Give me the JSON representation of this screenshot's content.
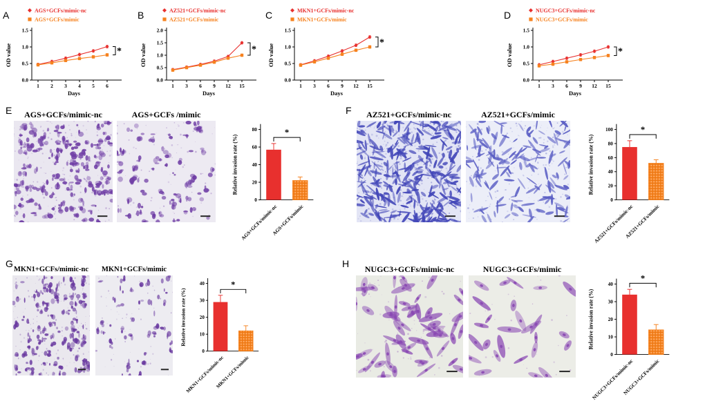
{
  "colors": {
    "nc": "#e8302e",
    "mimic": "#f6821f",
    "axis": "#000000"
  },
  "chart_data": {
    "line_charts": [
      {
        "panel": "A",
        "type": "line",
        "ylabel": "OD value",
        "xlabel": "Days",
        "ylim": [
          0,
          1.5
        ],
        "yticks": [
          "0.0",
          "0.5",
          "1.0",
          "1.5"
        ],
        "x": [
          "1",
          "2",
          "3",
          "4",
          "5",
          "6"
        ],
        "err": 0.04,
        "sig": "*",
        "series": [
          {
            "name": "AGS+GCFs/mimic-nc",
            "marker": "diamond",
            "color": "#e8302e",
            "values": [
              0.47,
              0.56,
              0.66,
              0.77,
              0.88,
              1.01
            ]
          },
          {
            "name": "AGS+GCFs/mimic",
            "marker": "square",
            "color": "#f6821f",
            "values": [
              0.46,
              0.52,
              0.59,
              0.65,
              0.7,
              0.76
            ]
          }
        ]
      },
      {
        "panel": "B",
        "type": "line",
        "ylabel": "OD value",
        "xlabel": "Days",
        "ylim": [
          0,
          2.0
        ],
        "yticks": [
          "0.0",
          "0.5",
          "1.0",
          "1.5",
          "2.0"
        ],
        "x": [
          "1",
          "3",
          "6",
          "9",
          "12",
          "15"
        ],
        "err": 0.05,
        "sig": "*",
        "series": [
          {
            "name": "AZ521+GCFs/mimic-nc",
            "marker": "diamond",
            "color": "#e8302e",
            "values": [
              0.42,
              0.52,
              0.63,
              0.76,
              0.95,
              1.5
            ]
          },
          {
            "name": "AZ521+GCFs/mimic",
            "marker": "square",
            "color": "#f6821f",
            "values": [
              0.4,
              0.5,
              0.6,
              0.72,
              0.88,
              1.0
            ]
          }
        ]
      },
      {
        "panel": "C",
        "type": "line",
        "ylabel": "OD value",
        "xlabel": "Days",
        "ylim": [
          0,
          1.5
        ],
        "yticks": [
          "0.0",
          "0.5",
          "1.0",
          "1.5"
        ],
        "x": [
          "1",
          "3",
          "6",
          "9",
          "12",
          "15"
        ],
        "err": 0.04,
        "sig": "*",
        "series": [
          {
            "name": "MKN1+GCFs/mimic-nc",
            "marker": "diamond",
            "color": "#e8302e",
            "values": [
              0.46,
              0.58,
              0.72,
              0.88,
              1.05,
              1.3
            ]
          },
          {
            "name": "MKN1+GCFs/mimic",
            "marker": "square",
            "color": "#f6821f",
            "values": [
              0.45,
              0.55,
              0.66,
              0.78,
              0.9,
              1.0
            ]
          }
        ]
      },
      {
        "panel": "D",
        "type": "line",
        "ylabel": "OD value",
        "xlabel": "Days",
        "ylim": [
          0,
          1.5
        ],
        "yticks": [
          "0.0",
          "0.5",
          "1.0",
          "1.5"
        ],
        "x": [
          "1",
          "3",
          "6",
          "9",
          "12",
          "15"
        ],
        "err": 0.04,
        "sig": "*",
        "series": [
          {
            "name": "NUGC3+GCFs/mimic-nc",
            "marker": "diamond",
            "color": "#e8302e",
            "values": [
              0.46,
              0.56,
              0.66,
              0.76,
              0.87,
              1.0
            ]
          },
          {
            "name": "NUGC3+GCFs/mimic",
            "marker": "square",
            "color": "#f6821f",
            "values": [
              0.43,
              0.48,
              0.55,
              0.62,
              0.68,
              0.74
            ]
          }
        ]
      }
    ],
    "bar_charts": [
      {
        "panel": "E",
        "type": "bar",
        "ylabel": "Relative invasion rate (%)",
        "ylim": 80,
        "yticks": [
          0,
          20,
          40,
          60,
          80
        ],
        "sig": "*",
        "categories": [
          "AGS+GCFs/mimic-nc",
          "AGS+GCFs/mimic"
        ],
        "values": [
          57,
          22
        ],
        "errors": [
          7,
          4
        ],
        "bar_colors": [
          "#e8302e",
          "#f6821f"
        ]
      },
      {
        "panel": "F",
        "type": "bar",
        "ylabel": "Relative invasion rate (%)",
        "ylim": 100,
        "yticks": [
          0,
          20,
          40,
          60,
          80,
          100
        ],
        "sig": "*",
        "categories": [
          "AZ521+GCFs/mimic-nc",
          "AZ521+GCFs/mimic"
        ],
        "values": [
          75,
          52
        ],
        "errors": [
          9,
          5
        ],
        "bar_colors": [
          "#e8302e",
          "#f6821f"
        ]
      },
      {
        "panel": "G",
        "type": "bar",
        "ylabel": "Relative invasion rate (%)",
        "ylim": 40,
        "yticks": [
          0,
          10,
          20,
          30,
          40
        ],
        "sig": "*",
        "categories": [
          "MKN1+GCFs/mimic-nc",
          "MKN1+GCFs/mimic"
        ],
        "values": [
          29,
          12
        ],
        "errors": [
          4,
          3
        ],
        "bar_colors": [
          "#e8302e",
          "#f6821f"
        ]
      },
      {
        "panel": "H",
        "type": "bar",
        "ylabel": "Relative invasion rate (%)",
        "ylim": 40,
        "yticks": [
          0,
          10,
          20,
          30,
          40
        ],
        "sig": "*",
        "categories": [
          "NUGC3+GCFs/mimic-nc",
          "NUGC3+GCFs/mimic"
        ],
        "values": [
          34,
          14
        ],
        "errors": [
          3,
          3
        ],
        "bar_colors": [
          "#e8302e",
          "#f6821f"
        ]
      }
    ]
  },
  "micrograph_panels": [
    {
      "panel": "E",
      "images": [
        {
          "title": "AGS+GCFs/mimic-nc",
          "cells": {
            "shape": "blob",
            "count": 170,
            "color": "#6f3da5",
            "bg": "#eae7f0",
            "seed": 11
          }
        },
        {
          "title": "AGS+GCFs /mimic",
          "cells": {
            "shape": "blob",
            "count": 75,
            "color": "#6f3da5",
            "bg": "#edeaf2",
            "seed": 22
          }
        }
      ]
    },
    {
      "panel": "F",
      "images": [
        {
          "title": "AZ521+GCFs/mimic-nc",
          "cells": {
            "shape": "spindle",
            "count": 340,
            "color": "#4246b8",
            "bg": "#e3e5f5",
            "seed": 33
          }
        },
        {
          "title": "AZ521+GCFs/mimic",
          "cells": {
            "shape": "spindle",
            "count": 170,
            "color": "#5a5ec4",
            "bg": "#eceef8",
            "seed": 44
          }
        }
      ]
    },
    {
      "panel": "G",
      "images": [
        {
          "title": "MKN1+GCFs/mimic-nc",
          "cells": {
            "shape": "blob",
            "count": 140,
            "color": "#6a3aa0",
            "bg": "#eae8ee",
            "seed": 55
          }
        },
        {
          "title": "MKN1+GCFs/mimic",
          "cells": {
            "shape": "blob",
            "count": 55,
            "color": "#6a3aa0",
            "bg": "#edecf1",
            "seed": 66
          }
        }
      ]
    },
    {
      "panel": "H",
      "images": [
        {
          "title": "NUGC3+GCFs/mimic-nc",
          "cells": {
            "shape": "large",
            "count": 60,
            "color": "#8a49b3",
            "bg": "#e9ebe4",
            "seed": 77
          }
        },
        {
          "title": "NUGC3+GCFs/mimic",
          "cells": {
            "shape": "large",
            "count": 26,
            "color": "#8a49b3",
            "bg": "#ecede7",
            "seed": 88
          }
        }
      ]
    }
  ]
}
